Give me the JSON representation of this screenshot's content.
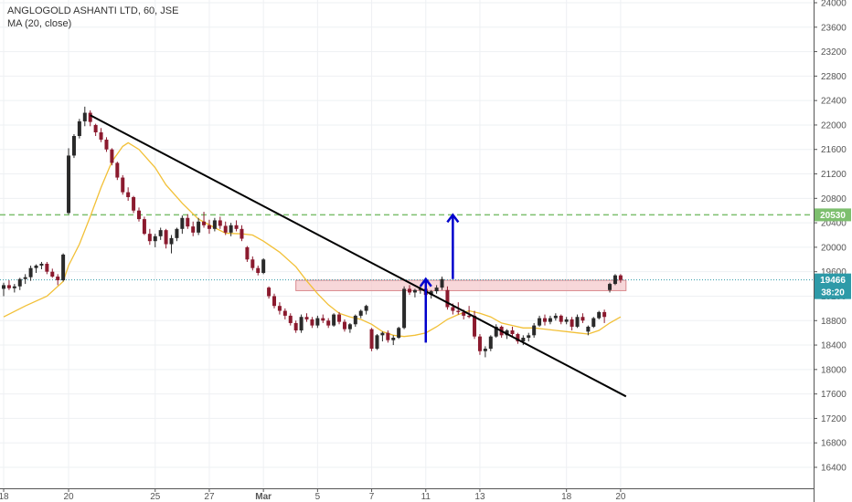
{
  "header": {
    "symbol_line": "ANGLOGOLD ASHANTI LTD, 60, JSE",
    "indicator_line": "MA (20, close)"
  },
  "colors": {
    "up": "#2a2a2a",
    "down": "#8b1a2e",
    "ma": "#f2c037",
    "trendline": "#000000",
    "arrow": "#0000cc",
    "target_line": "#7dbf6e",
    "price_line": "#2e9aa8",
    "zone_fill": "#f4c6c9",
    "zone_stroke": "#d98a8f"
  },
  "chart_data": {
    "type": "candlestick",
    "y_axis": {
      "ylim": [
        16400,
        24000
      ],
      "ticks": [
        24000,
        23600,
        23200,
        22800,
        22400,
        22000,
        21600,
        21200,
        20800,
        20400,
        20000,
        19600,
        19200,
        18800,
        18400,
        18000,
        17600,
        17200,
        16800,
        16400
      ]
    },
    "x_axis": {
      "ticks": [
        {
          "label": "18",
          "t": 0
        },
        {
          "label": "20",
          "t": 12
        },
        {
          "label": "25",
          "t": 28
        },
        {
          "label": "27",
          "t": 38
        },
        {
          "label": "Mar",
          "t": 48
        },
        {
          "label": "5",
          "t": 58
        },
        {
          "label": "7",
          "t": 68
        },
        {
          "label": "11",
          "t": 78
        },
        {
          "label": "13",
          "t": 88
        },
        {
          "label": "18",
          "t": 104
        },
        {
          "label": "20",
          "t": 114
        }
      ]
    },
    "candles": [
      [
        0,
        19320,
        19420,
        19200,
        19380
      ],
      [
        1,
        19380,
        19460,
        19300,
        19330
      ],
      [
        2,
        19330,
        19400,
        19260,
        19360
      ],
      [
        3,
        19360,
        19500,
        19300,
        19480
      ],
      [
        4,
        19480,
        19560,
        19400,
        19510
      ],
      [
        5,
        19510,
        19700,
        19450,
        19660
      ],
      [
        6,
        19660,
        19720,
        19580,
        19700
      ],
      [
        7,
        19700,
        19760,
        19640,
        19730
      ],
      [
        8,
        19730,
        19760,
        19560,
        19600
      ],
      [
        9,
        19600,
        19650,
        19500,
        19520
      ],
      [
        10,
        19520,
        19560,
        19380,
        19460
      ],
      [
        11,
        19460,
        19900,
        19440,
        19880
      ],
      [
        12,
        20560,
        21620,
        20540,
        21500
      ],
      [
        13,
        21500,
        21850,
        21460,
        21820
      ],
      [
        14,
        21820,
        22100,
        21780,
        22060
      ],
      [
        15,
        22060,
        22300,
        21980,
        22200
      ],
      [
        16,
        22200,
        22240,
        21980,
        22050
      ],
      [
        17,
        22000,
        22020,
        21820,
        21880
      ],
      [
        18,
        21880,
        21950,
        21720,
        21760
      ],
      [
        19,
        21760,
        21800,
        21560,
        21600
      ],
      [
        20,
        21600,
        21620,
        21340,
        21380
      ],
      [
        21,
        21380,
        21400,
        21100,
        21140
      ],
      [
        22,
        21140,
        21180,
        20860,
        20900
      ],
      [
        23,
        20900,
        20980,
        20760,
        20820
      ],
      [
        24,
        20820,
        20840,
        20560,
        20600
      ],
      [
        25,
        20600,
        20650,
        20420,
        20460
      ],
      [
        26,
        20460,
        20500,
        20200,
        20220
      ],
      [
        27,
        20220,
        20300,
        20040,
        20100
      ],
      [
        28,
        20100,
        20220,
        20000,
        20180
      ],
      [
        29,
        20180,
        20320,
        20120,
        20280
      ],
      [
        30,
        20280,
        20300,
        19980,
        20050
      ],
      [
        31,
        20050,
        20200,
        19900,
        20150
      ],
      [
        32,
        20150,
        20320,
        20100,
        20300
      ],
      [
        33,
        20300,
        20520,
        20220,
        20480
      ],
      [
        34,
        20480,
        20540,
        20300,
        20340
      ],
      [
        35,
        20340,
        20420,
        20180,
        20240
      ],
      [
        36,
        20240,
        20480,
        20200,
        20420
      ],
      [
        37,
        20420,
        20580,
        20320,
        20360
      ],
      [
        38,
        20360,
        20450,
        20220,
        20300
      ],
      [
        39,
        20300,
        20480,
        20260,
        20440
      ],
      [
        40,
        20440,
        20500,
        20300,
        20350
      ],
      [
        41,
        20350,
        20420,
        20200,
        20240
      ],
      [
        42,
        20240,
        20400,
        20180,
        20360
      ],
      [
        43,
        20360,
        20440,
        20260,
        20300
      ],
      [
        44,
        20300,
        20360,
        20100,
        20140
      ],
      [
        45,
        20000,
        20020,
        19760,
        19800
      ],
      [
        46,
        19800,
        19850,
        19620,
        19660
      ],
      [
        47,
        19660,
        19700,
        19540,
        19580
      ],
      [
        48,
        19580,
        19820,
        19560,
        19800
      ],
      [
        49,
        19340,
        19360,
        19160,
        19200
      ],
      [
        50,
        19200,
        19240,
        19000,
        19040
      ],
      [
        51,
        19040,
        19100,
        18900,
        18960
      ],
      [
        52,
        18960,
        19000,
        18820,
        18880
      ],
      [
        53,
        18880,
        18920,
        18720,
        18760
      ],
      [
        54,
        18760,
        18800,
        18600,
        18640
      ],
      [
        55,
        18640,
        18900,
        18600,
        18860
      ],
      [
        56,
        18860,
        18920,
        18780,
        18820
      ],
      [
        57,
        18820,
        18860,
        18680,
        18720
      ],
      [
        58,
        18720,
        18880,
        18680,
        18840
      ],
      [
        59,
        18840,
        18900,
        18760,
        18800
      ],
      [
        60,
        18800,
        18840,
        18680,
        18720
      ],
      [
        61,
        18720,
        18920,
        18700,
        18900
      ],
      [
        62,
        18900,
        18940,
        18740,
        18780
      ],
      [
        63,
        18780,
        18820,
        18620,
        18660
      ],
      [
        64,
        18660,
        18760,
        18600,
        18740
      ],
      [
        65,
        18740,
        18900,
        18700,
        18880
      ],
      [
        66,
        18880,
        18980,
        18840,
        18960
      ],
      [
        67,
        18960,
        19060,
        18900,
        19040
      ],
      [
        68,
        18660,
        18680,
        18300,
        18340
      ],
      [
        69,
        18340,
        18580,
        18320,
        18560
      ],
      [
        70,
        18560,
        18620,
        18460,
        18600
      ],
      [
        71,
        18600,
        18640,
        18440,
        18480
      ],
      [
        72,
        18480,
        18560,
        18400,
        18520
      ],
      [
        73,
        18520,
        18700,
        18500,
        18680
      ],
      [
        74,
        18680,
        19360,
        18660,
        19320
      ],
      [
        75,
        19320,
        19380,
        19220,
        19260
      ],
      [
        76,
        19260,
        19320,
        19180,
        19300
      ],
      [
        77,
        19300,
        19360,
        19240,
        19320
      ],
      [
        78,
        19320,
        19440,
        19180,
        19220
      ],
      [
        79,
        19220,
        19300,
        19160,
        19280
      ],
      [
        80,
        19280,
        19380,
        19240,
        19340
      ],
      [
        81,
        19340,
        19520,
        19300,
        19480
      ],
      [
        82,
        19300,
        19360,
        18980,
        19020
      ],
      [
        83,
        19020,
        19080,
        18900,
        18960
      ],
      [
        84,
        18960,
        19100,
        18900,
        18940
      ],
      [
        85,
        18940,
        18980,
        18820,
        18880
      ],
      [
        86,
        18880,
        19040,
        18840,
        18860
      ],
      [
        87,
        18880,
        18960,
        18500,
        18540
      ],
      [
        88,
        18540,
        18580,
        18240,
        18300
      ],
      [
        89,
        18300,
        18380,
        18200,
        18340
      ],
      [
        90,
        18340,
        18560,
        18300,
        18540
      ],
      [
        91,
        18540,
        18740,
        18520,
        18700
      ],
      [
        92,
        18700,
        18720,
        18520,
        18560
      ],
      [
        93,
        18560,
        18660,
        18500,
        18640
      ],
      [
        94,
        18640,
        18700,
        18540,
        18580
      ],
      [
        95,
        18580,
        18600,
        18420,
        18460
      ],
      [
        96,
        18460,
        18560,
        18400,
        18520
      ],
      [
        97,
        18520,
        18600,
        18460,
        18560
      ],
      [
        98,
        18560,
        18760,
        18520,
        18720
      ],
      [
        99,
        18720,
        18880,
        18700,
        18840
      ],
      [
        100,
        18840,
        18900,
        18720,
        18780
      ],
      [
        101,
        18780,
        18880,
        18740,
        18840
      ],
      [
        102,
        18840,
        18920,
        18800,
        18880
      ],
      [
        103,
        18880,
        18900,
        18740,
        18780
      ],
      [
        104,
        18780,
        18860,
        18740,
        18820
      ],
      [
        105,
        18820,
        18860,
        18640,
        18700
      ],
      [
        106,
        18700,
        18900,
        18680,
        18860
      ],
      [
        107,
        18860,
        18920,
        18760,
        18800
      ],
      [
        108,
        18620,
        18720,
        18560,
        18700
      ],
      [
        109,
        18700,
        18860,
        18680,
        18840
      ],
      [
        110,
        18840,
        18960,
        18820,
        18940
      ],
      [
        111,
        18940,
        18980,
        18760,
        18860
      ],
      [
        112,
        19300,
        19420,
        19260,
        19400
      ],
      [
        113,
        19400,
        19560,
        19380,
        19540
      ],
      [
        114,
        19540,
        19560,
        19420,
        19466
      ]
    ],
    "ma": {
      "name": "MA (20, close)",
      "points": [
        [
          0,
          18860
        ],
        [
          4,
          19040
        ],
        [
          8,
          19200
        ],
        [
          11,
          19440
        ],
        [
          12,
          19700
        ],
        [
          14,
          20050
        ],
        [
          16,
          20500
        ],
        [
          18,
          20980
        ],
        [
          20,
          21400
        ],
        [
          22,
          21650
        ],
        [
          23,
          21710
        ],
        [
          25,
          21600
        ],
        [
          28,
          21300
        ],
        [
          30,
          21020
        ],
        [
          33,
          20720
        ],
        [
          36,
          20460
        ],
        [
          39,
          20320
        ],
        [
          41,
          20230
        ],
        [
          44,
          20220
        ],
        [
          46,
          20200
        ],
        [
          48,
          20100
        ],
        [
          51,
          19920
        ],
        [
          54,
          19680
        ],
        [
          56,
          19450
        ],
        [
          58,
          19240
        ],
        [
          60,
          19060
        ],
        [
          62,
          18920
        ],
        [
          64,
          18860
        ],
        [
          66,
          18820
        ],
        [
          68,
          18740
        ],
        [
          70,
          18620
        ],
        [
          72,
          18560
        ],
        [
          74,
          18540
        ],
        [
          76,
          18560
        ],
        [
          78,
          18600
        ],
        [
          80,
          18700
        ],
        [
          82,
          18820
        ],
        [
          84,
          18900
        ],
        [
          86,
          18960
        ],
        [
          88,
          18920
        ],
        [
          90,
          18860
        ],
        [
          92,
          18760
        ],
        [
          94,
          18720
        ],
        [
          96,
          18680
        ],
        [
          98,
          18680
        ],
        [
          100,
          18660
        ],
        [
          102,
          18640
        ],
        [
          104,
          18620
        ],
        [
          106,
          18600
        ],
        [
          108,
          18580
        ],
        [
          110,
          18640
        ],
        [
          112,
          18760
        ],
        [
          114,
          18860
        ]
      ]
    },
    "trendline": {
      "from": [
        16,
        22160
      ],
      "to": [
        115,
        17560
      ]
    },
    "arrows": [
      {
        "x": 78,
        "from": 18440,
        "to": 19480
      },
      {
        "x": 83,
        "from": 19480,
        "to": 20530
      }
    ],
    "zone": {
      "t_start": 54,
      "t_end": 115,
      "y_top": 19460,
      "y_bottom": 19290
    },
    "target_line": {
      "value": 20530,
      "label": "20530"
    },
    "price_line": {
      "value": 19466,
      "label": "19466"
    },
    "countdown": "38:20"
  }
}
